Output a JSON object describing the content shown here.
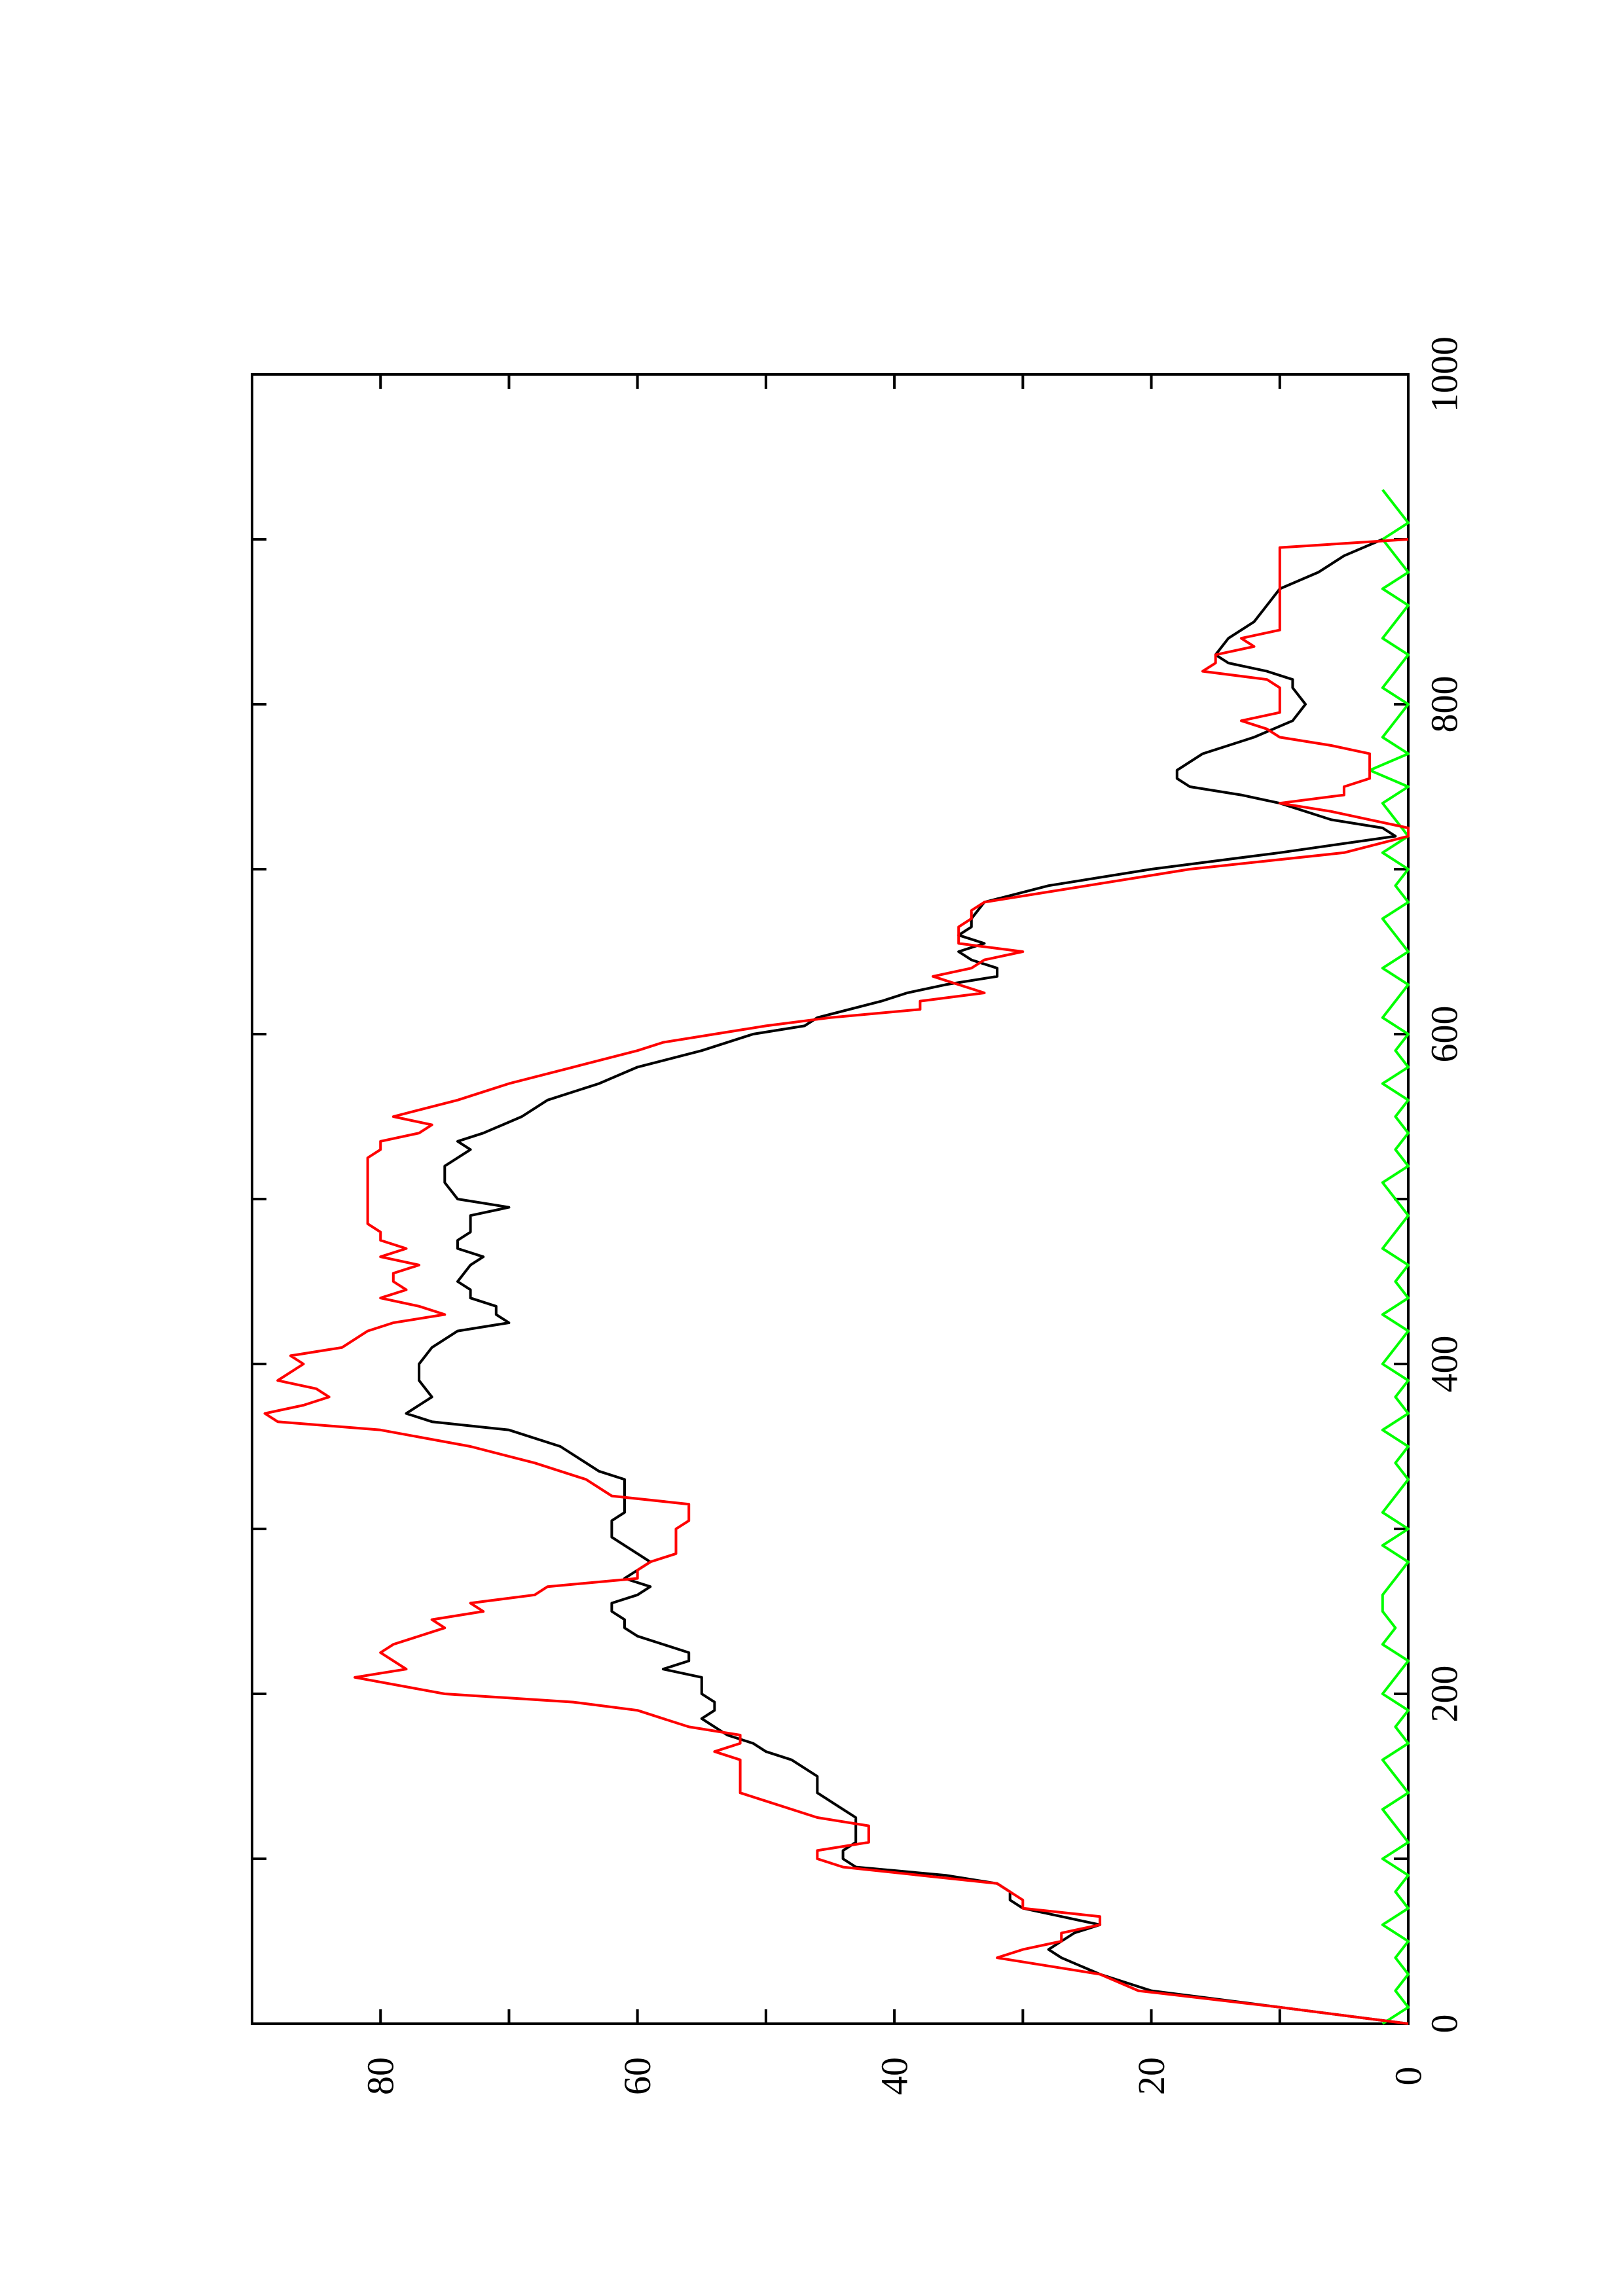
{
  "chart_data": {
    "type": "line",
    "orientation": "rotated-90-ccw",
    "title": "",
    "xlabel": "",
    "ylabel": "",
    "xlim": [
      0,
      1000
    ],
    "ylim": [
      0,
      90
    ],
    "x_ticks": [
      0,
      200,
      400,
      600,
      800,
      1000
    ],
    "x_minor_ticks": [
      100,
      300,
      500,
      700,
      900
    ],
    "y_ticks": [
      0,
      20,
      40,
      60,
      80
    ],
    "y_minor_ticks": [
      10,
      30,
      50,
      70
    ],
    "grid": false,
    "series": [
      {
        "color": "#000000",
        "x": [
          0,
          10,
          20,
          30,
          40,
          45,
          50,
          55,
          60,
          65,
          70,
          75,
          80,
          85,
          90,
          95,
          100,
          105,
          110,
          115,
          120,
          125,
          130,
          135,
          140,
          145,
          150,
          160,
          165,
          170,
          175,
          180,
          185,
          190,
          195,
          200,
          210,
          215,
          220,
          225,
          230,
          235,
          240,
          245,
          250,
          255,
          260,
          265,
          270,
          275,
          280,
          285,
          290,
          295,
          300,
          305,
          310,
          320,
          330,
          335,
          340,
          350,
          360,
          365,
          370,
          375,
          380,
          390,
          400,
          410,
          420,
          425,
          430,
          435,
          440,
          445,
          450,
          460,
          465,
          470,
          475,
          480,
          490,
          495,
          500,
          510,
          520,
          530,
          535,
          540,
          550,
          560,
          570,
          580,
          590,
          600,
          605,
          610,
          620,
          625,
          630,
          635,
          640,
          645,
          650,
          655,
          660,
          665,
          670,
          680,
          690,
          700,
          710,
          720,
          725,
          730,
          740,
          745,
          750,
          755,
          760,
          765,
          770,
          775,
          780,
          790,
          800,
          810,
          815,
          820,
          825,
          830,
          840,
          850,
          860,
          870,
          880,
          890,
          900
        ],
        "y": [
          0,
          10,
          20,
          24,
          27,
          28,
          27,
          26,
          24,
          27,
          30,
          31,
          31,
          32,
          36,
          43,
          44,
          44,
          43,
          43,
          43,
          43,
          44,
          45,
          46,
          46,
          46,
          48,
          50,
          51,
          53,
          54,
          55,
          54,
          54,
          55,
          55,
          58,
          56,
          56,
          58,
          60,
          61,
          61,
          62,
          62,
          60,
          59,
          61,
          60,
          59,
          60,
          61,
          62,
          62,
          62,
          61,
          61,
          61,
          63,
          64,
          66,
          70,
          76,
          78,
          77,
          76,
          77,
          77,
          76,
          74,
          70,
          71,
          71,
          73,
          73,
          74,
          73,
          72,
          74,
          74,
          73,
          73,
          70,
          74,
          75,
          75,
          73,
          74,
          72,
          69,
          67,
          63,
          60,
          55,
          51,
          47,
          46,
          41,
          39,
          36,
          32,
          32,
          34,
          35,
          33,
          35,
          34,
          34,
          33,
          28,
          20,
          10,
          1,
          2,
          6,
          10,
          13,
          17,
          18,
          18,
          17,
          16,
          14,
          12,
          9,
          8,
          9,
          9,
          11,
          14,
          15,
          14,
          12,
          11,
          10,
          7,
          5,
          2
        ]
      },
      {
        "color": "#ff0000",
        "x": [
          0,
          10,
          20,
          30,
          35,
          40,
          45,
          50,
          55,
          60,
          65,
          70,
          75,
          85,
          90,
          95,
          100,
          105,
          110,
          115,
          120,
          125,
          130,
          135,
          140,
          150,
          160,
          165,
          170,
          175,
          180,
          185,
          190,
          195,
          200,
          210,
          215,
          220,
          225,
          230,
          240,
          245,
          250,
          255,
          260,
          265,
          270,
          275,
          280,
          285,
          290,
          300,
          305,
          310,
          315,
          320,
          330,
          340,
          350,
          360,
          365,
          370,
          375,
          380,
          385,
          390,
          395,
          400,
          405,
          410,
          420,
          425,
          430,
          435,
          440,
          445,
          450,
          455,
          460,
          465,
          470,
          475,
          480,
          485,
          490,
          500,
          510,
          520,
          525,
          530,
          535,
          540,
          545,
          550,
          560,
          570,
          580,
          590,
          595,
          600,
          605,
          610,
          615,
          620,
          625,
          630,
          635,
          640,
          645,
          650,
          655,
          660,
          665,
          670,
          675,
          680,
          690,
          700,
          710,
          720,
          725,
          730,
          735,
          740,
          745,
          750,
          755,
          760,
          765,
          770,
          775,
          780,
          785,
          790,
          795,
          800,
          805,
          810,
          815,
          820,
          825,
          830,
          835,
          840,
          845,
          850,
          860,
          870,
          880,
          890,
          895,
          900
        ],
        "y": [
          0,
          10,
          21,
          24,
          28,
          32,
          30,
          27,
          27,
          24,
          24,
          30,
          30,
          32,
          38,
          44,
          46,
          46,
          42,
          42,
          42,
          46,
          48,
          50,
          52,
          52,
          52,
          54,
          52,
          52,
          56,
          58,
          60,
          65,
          75,
          82,
          78,
          79,
          80,
          79,
          75,
          76,
          72,
          73,
          68,
          67,
          60,
          60,
          59,
          57,
          57,
          57,
          56,
          56,
          56,
          62,
          64,
          68,
          73,
          80,
          88,
          89,
          86,
          84,
          85,
          88,
          87,
          86,
          87,
          83,
          81,
          79,
          75,
          77,
          80,
          78,
          79,
          79,
          77,
          80,
          78,
          80,
          80,
          81,
          81,
          81,
          81,
          81,
          81,
          80,
          80,
          77,
          76,
          79,
          74,
          70,
          65,
          60,
          58,
          54,
          50,
          45,
          38,
          38,
          33,
          35,
          37,
          34,
          33,
          30,
          35,
          35,
          35,
          34,
          34,
          33,
          25,
          17,
          5,
          0,
          0,
          3,
          6,
          10,
          5,
          5,
          3,
          3,
          3,
          3,
          6,
          10,
          11,
          13,
          10,
          10,
          10,
          10,
          11,
          16,
          15,
          15,
          12,
          13,
          10,
          10,
          10,
          10,
          10,
          10,
          10,
          0
        ]
      },
      {
        "color": "#00ff00",
        "x": [
          0,
          10,
          20,
          30,
          40,
          50,
          60,
          70,
          80,
          90,
          100,
          110,
          120,
          130,
          140,
          150,
          160,
          170,
          180,
          190,
          200,
          210,
          220,
          230,
          240,
          250,
          260,
          270,
          280,
          290,
          300,
          310,
          320,
          330,
          340,
          350,
          360,
          370,
          380,
          390,
          400,
          410,
          420,
          430,
          440,
          450,
          460,
          470,
          480,
          490,
          500,
          510,
          520,
          530,
          540,
          550,
          560,
          570,
          580,
          590,
          600,
          610,
          620,
          630,
          640,
          650,
          660,
          670,
          680,
          690,
          700,
          710,
          720,
          730,
          740,
          750,
          760,
          770,
          780,
          790,
          800,
          810,
          820,
          830,
          840,
          850,
          860,
          870,
          880,
          890,
          900,
          910,
          920,
          930
        ],
        "y": [
          2,
          0,
          1,
          0,
          1,
          0,
          2,
          0,
          1,
          0,
          2,
          0,
          1,
          2,
          0,
          1,
          2,
          0,
          1,
          0,
          2,
          1,
          0,
          2,
          1,
          2,
          2,
          1,
          0,
          2,
          0,
          2,
          1,
          0,
          1,
          0,
          2,
          0,
          1,
          0,
          2,
          1,
          0,
          2,
          0,
          1,
          0,
          2,
          1,
          0,
          1,
          2,
          0,
          1,
          0,
          1,
          0,
          2,
          0,
          1,
          0,
          2,
          1,
          0,
          2,
          0,
          1,
          2,
          0,
          1,
          0,
          2,
          0,
          1,
          2,
          0,
          3,
          0,
          2,
          1,
          0,
          2,
          1,
          0,
          2,
          1,
          0,
          2,
          0,
          1,
          2,
          0,
          1,
          2
        ]
      }
    ]
  }
}
